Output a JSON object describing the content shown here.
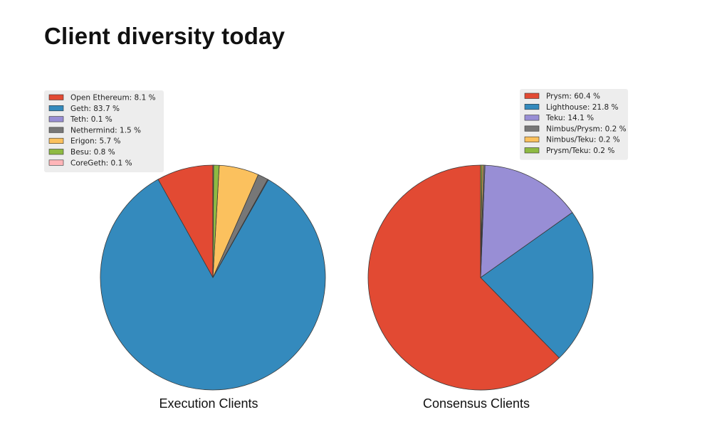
{
  "page": {
    "title": "Client diversity today"
  },
  "chart_data": [
    {
      "type": "pie",
      "label": "Execution Clients",
      "legend_position": "top-left",
      "slices": [
        {
          "name": "Open Ethereum",
          "value": 8.1,
          "legend": "Open Ethereum: 8.1 %",
          "color": "#E24A33"
        },
        {
          "name": "Geth",
          "value": 83.7,
          "legend": "Geth: 83.7 %",
          "color": "#348ABD"
        },
        {
          "name": "Teth",
          "value": 0.1,
          "legend": "Teth: 0.1 %",
          "color": "#988ED5"
        },
        {
          "name": "Nethermind",
          "value": 1.5,
          "legend": "Nethermind: 1.5 %",
          "color": "#777777"
        },
        {
          "name": "Erigon",
          "value": 5.7,
          "legend": "Erigon: 5.7 %",
          "color": "#FBC15E"
        },
        {
          "name": "Besu",
          "value": 0.8,
          "legend": "Besu: 0.8 %",
          "color": "#8EBA42"
        },
        {
          "name": "CoreGeth",
          "value": 0.1,
          "legend": "CoreGeth: 0.1 %",
          "color": "#FFB5B8"
        }
      ]
    },
    {
      "type": "pie",
      "label": "Consensus Clients",
      "legend_position": "top-right",
      "slices": [
        {
          "name": "Prysm",
          "value": 60.4,
          "legend": "Prysm: 60.4 %",
          "color": "#E24A33"
        },
        {
          "name": "Lighthouse",
          "value": 21.8,
          "legend": "Lighthouse: 21.8 %",
          "color": "#348ABD"
        },
        {
          "name": "Teku",
          "value": 14.1,
          "legend": "Teku: 14.1 %",
          "color": "#988ED5"
        },
        {
          "name": "Nimbus/Prysm",
          "value": 0.2,
          "legend": "Nimbus/Prysm: 0.2 %",
          "color": "#777777"
        },
        {
          "name": "Nimbus/Teku",
          "value": 0.2,
          "legend": "Nimbus/Teku: 0.2 %",
          "color": "#FBC15E"
        },
        {
          "name": "Prysm/Teku",
          "value": 0.2,
          "legend": "Prysm/Teku: 0.2 %",
          "color": "#8EBA42"
        }
      ]
    }
  ]
}
